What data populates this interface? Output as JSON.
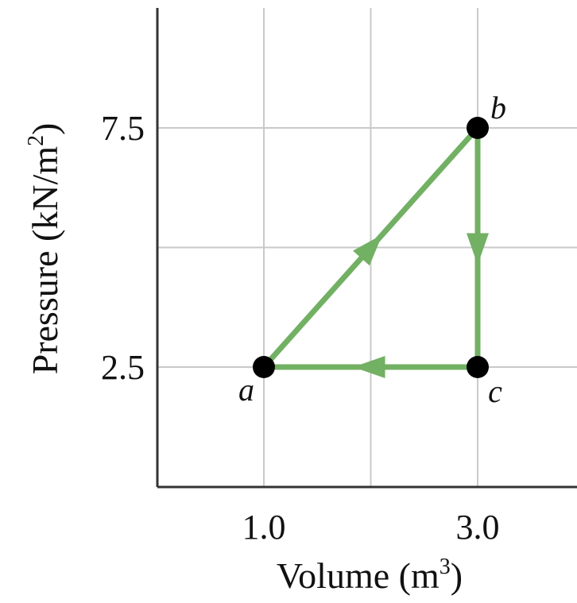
{
  "chart_data": {
    "type": "line",
    "title": "",
    "xlabel": "Volume (m",
    "xlabel_sup": "3",
    "xlabel_end": ")",
    "ylabel": "Pressure (kN/m",
    "ylabel_sup": "2",
    "ylabel_end": ")",
    "xlim": [
      0.0,
      4.0
    ],
    "ylim": [
      0.0,
      10.0
    ],
    "x_ticks": [
      {
        "value": 1.0,
        "label": "1.0"
      },
      {
        "value": 3.0,
        "label": "3.0"
      }
    ],
    "y_ticks": [
      {
        "value": 2.5,
        "label": "2.5"
      },
      {
        "value": 7.5,
        "label": "7.5"
      }
    ],
    "x_grid": [
      1.0,
      2.0,
      3.0
    ],
    "y_grid": [
      2.5,
      5.0,
      7.5
    ],
    "grid": true,
    "points": [
      {
        "name": "a",
        "x": 1.0,
        "y": 2.5,
        "label_pos": "below-left"
      },
      {
        "name": "b",
        "x": 3.0,
        "y": 7.5,
        "label_pos": "above-right"
      },
      {
        "name": "c",
        "x": 3.0,
        "y": 2.5,
        "label_pos": "below-right"
      }
    ],
    "cycle": [
      "a",
      "b",
      "c",
      "a"
    ],
    "colors": {
      "path": "#72b063",
      "point": "#000000",
      "grid": "#c9c9c9",
      "axis": "#333333"
    }
  }
}
